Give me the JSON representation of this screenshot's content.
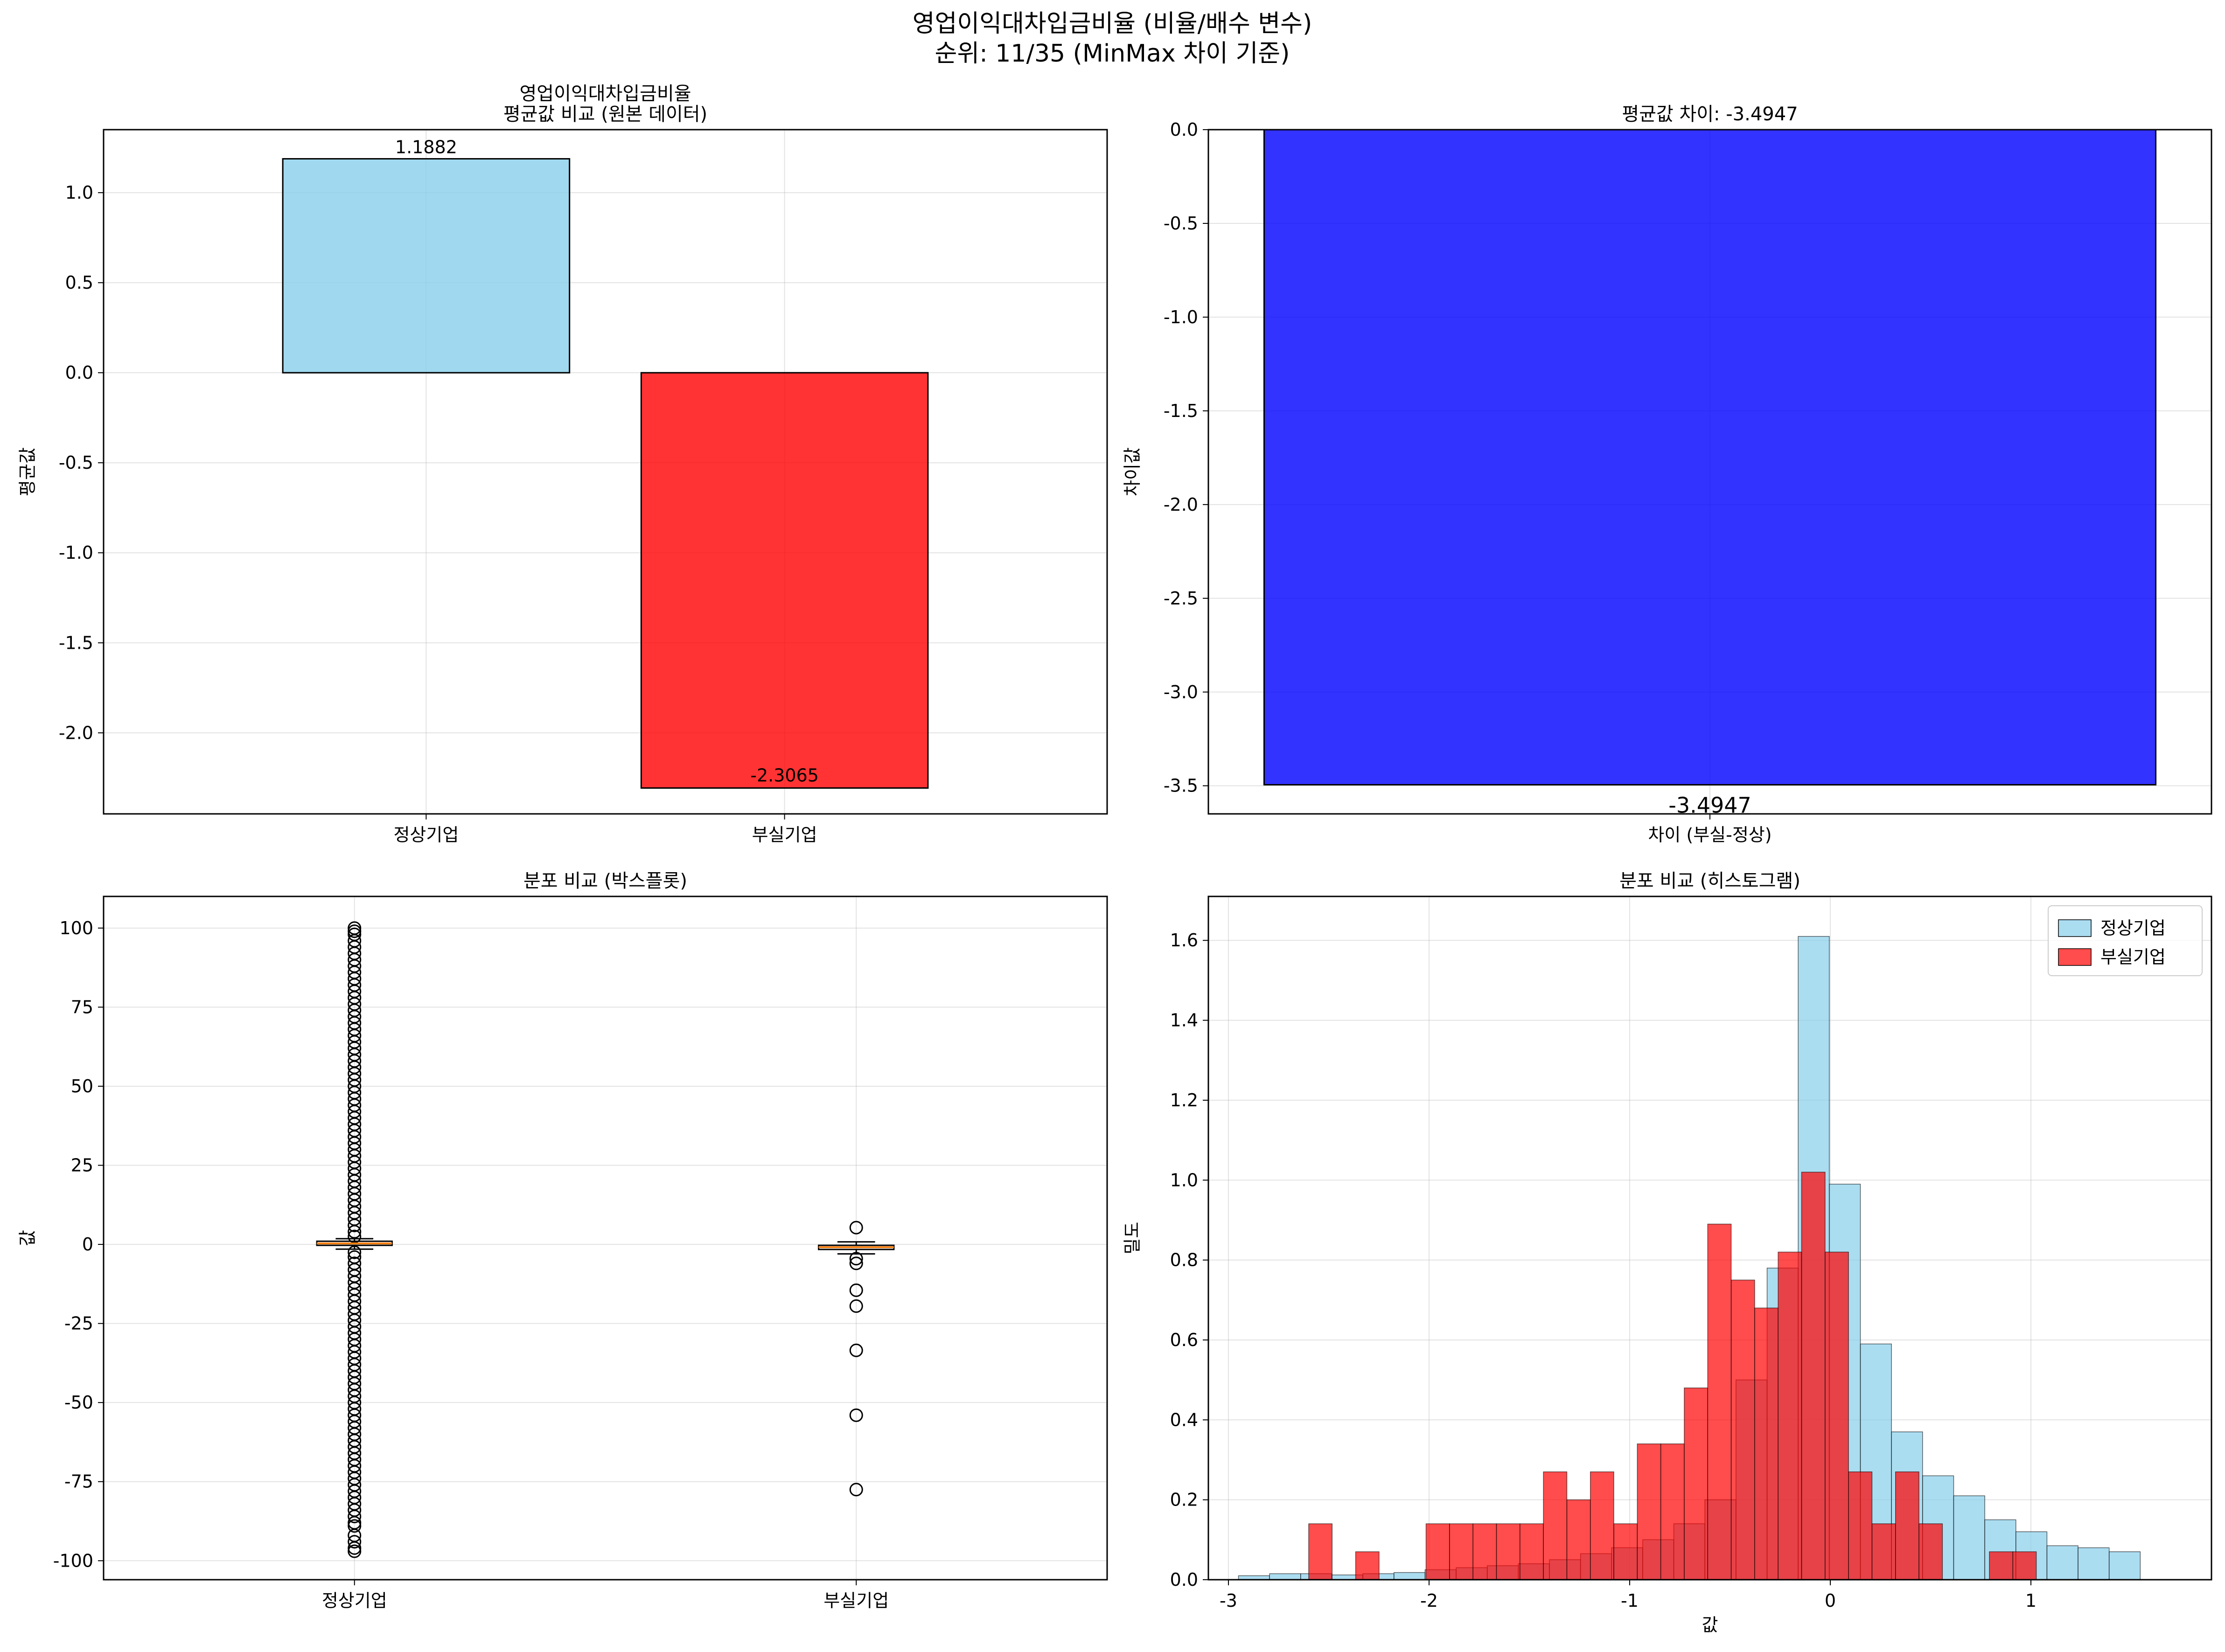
{
  "figure": {
    "title_line1": "영업이익대차입금비율 (비율/배수 변수)",
    "title_line2": "순위: 11/35 (MinMax 차이 기준)"
  },
  "colors": {
    "normal": "#87CEEB",
    "distressed": "#FF0000",
    "difference": "#0000FF",
    "median": "#FF7F0E"
  },
  "chart_data": [
    {
      "id": "mean-compare",
      "type": "bar",
      "title": "영업이익대차입금비율\n평균값 비교 (원본 데이터)",
      "xlabel": "",
      "ylabel": "평균값",
      "categories": [
        "정상기업",
        "부실기업"
      ],
      "values": [
        1.1882,
        -2.3065
      ],
      "value_labels": [
        "1.1882",
        "-2.3065"
      ],
      "ylim": [
        -2.45,
        1.35
      ],
      "yticks": [
        -2.0,
        -1.5,
        -1.0,
        -0.5,
        0.0,
        0.5,
        1.0
      ],
      "ytick_labels": [
        "-2.0",
        "-1.5",
        "-1.0",
        "-0.5",
        "0.0",
        "0.5",
        "1.0"
      ],
      "grid": true
    },
    {
      "id": "mean-difference",
      "type": "bar",
      "title": "평균값 차이: -3.4947",
      "xlabel": "",
      "ylabel": "차이값",
      "categories": [
        "차이 (부실-정상)"
      ],
      "values": [
        -3.4947
      ],
      "value_labels": [
        "-3.4947"
      ],
      "ylim": [
        -3.65,
        0.0
      ],
      "yticks": [
        -3.5,
        -3.0,
        -2.5,
        -2.0,
        -1.5,
        -1.0,
        -0.5,
        0.0
      ],
      "ytick_labels": [
        "-3.5",
        "-3.0",
        "-2.5",
        "-2.0",
        "-1.5",
        "-1.0",
        "-0.5",
        "0.0"
      ],
      "grid": true
    },
    {
      "id": "boxplot",
      "type": "boxplot",
      "title": "분포 비교 (박스플롯)",
      "xlabel": "",
      "ylabel": "값",
      "categories": [
        "정상기업",
        "부실기업"
      ],
      "boxes": [
        {
          "q1": -0.3,
          "median": 0.3,
          "q3": 1.0,
          "whisker_low": -1.5,
          "whisker_high": 1.8,
          "outliers": [
            -97,
            -96,
            -94,
            -92,
            -89,
            -88,
            -86,
            -84,
            -82,
            -80,
            -78,
            -76,
            -74,
            -72,
            -70,
            -68,
            -66,
            -64,
            -62,
            -60,
            -58,
            -56,
            -54,
            -52,
            -50,
            -48,
            -46,
            -44,
            -42,
            -40,
            -38,
            -36,
            -34,
            -32,
            -30,
            -28,
            -26,
            -24,
            -22,
            -20,
            -18,
            -16,
            -14,
            -12,
            -10,
            -8,
            -6,
            -4,
            -2.5,
            2.5,
            4,
            6,
            8,
            10,
            12,
            14,
            16,
            18,
            20,
            22,
            24,
            26,
            28,
            30,
            32,
            34,
            36,
            38,
            40,
            42,
            44,
            46,
            48,
            50,
            52,
            54,
            56,
            58,
            60,
            62,
            64,
            66,
            68,
            70,
            72,
            74,
            76,
            78,
            80,
            82,
            84,
            86,
            88,
            90,
            92,
            94,
            96,
            98,
            99,
            100
          ]
        },
        {
          "q1": -1.6,
          "median": -0.9,
          "q3": -0.3,
          "whisker_low": -3.0,
          "whisker_high": 0.8,
          "outliers": [
            5.3,
            -4.5,
            -6.0,
            -14.5,
            -19.5,
            -33.5,
            -54.0,
            -77.5
          ]
        }
      ],
      "ylim": [
        -106,
        110
      ],
      "yticks": [
        -100,
        -75,
        -50,
        -25,
        0,
        25,
        50,
        75,
        100
      ],
      "ytick_labels": [
        "-100",
        "-75",
        "-50",
        "-25",
        "0",
        "25",
        "50",
        "75",
        "100"
      ],
      "grid": true
    },
    {
      "id": "histogram",
      "type": "histogram",
      "title": "분포 비교 (히스토그램)",
      "xlabel": "값",
      "ylabel": "밀도",
      "xlim": [
        -3.1,
        1.9
      ],
      "ylim": [
        0,
        1.71
      ],
      "xticks": [
        -3,
        -2,
        -1,
        0,
        1
      ],
      "xtick_labels": [
        "-3",
        "-2",
        "-1",
        "0",
        "1"
      ],
      "yticks": [
        0.0,
        0.2,
        0.4,
        0.6,
        0.8,
        1.0,
        1.2,
        1.4,
        1.6
      ],
      "ytick_labels": [
        "0.0",
        "0.2",
        "0.4",
        "0.6",
        "0.8",
        "1.0",
        "1.2",
        "1.4",
        "1.6"
      ],
      "legend_position": "top-right",
      "grid": true,
      "series": [
        {
          "name": "정상기업",
          "color": "#87CEEB",
          "bin_start": -2.95,
          "bin_width": 0.155,
          "values": [
            0.01,
            0.015,
            0.015,
            0.012,
            0.015,
            0.018,
            0.025,
            0.03,
            0.035,
            0.04,
            0.05,
            0.065,
            0.08,
            0.1,
            0.14,
            0.2,
            0.5,
            0.78,
            1.61,
            0.99,
            0.59,
            0.37,
            0.26,
            0.21,
            0.15,
            0.12,
            0.085,
            0.08,
            0.07
          ]
        },
        {
          "name": "부실기업",
          "color": "#FF0000",
          "bin_start": -2.6,
          "bin_width": 0.117,
          "values": [
            0.14,
            0.0,
            0.07,
            0.0,
            0.0,
            0.14,
            0.14,
            0.14,
            0.14,
            0.14,
            0.27,
            0.2,
            0.27,
            0.14,
            0.34,
            0.34,
            0.48,
            0.89,
            0.75,
            0.68,
            0.82,
            1.02,
            0.82,
            0.27,
            0.14,
            0.27,
            0.14,
            0.0,
            0.0,
            0.07,
            0.07
          ]
        }
      ]
    }
  ]
}
